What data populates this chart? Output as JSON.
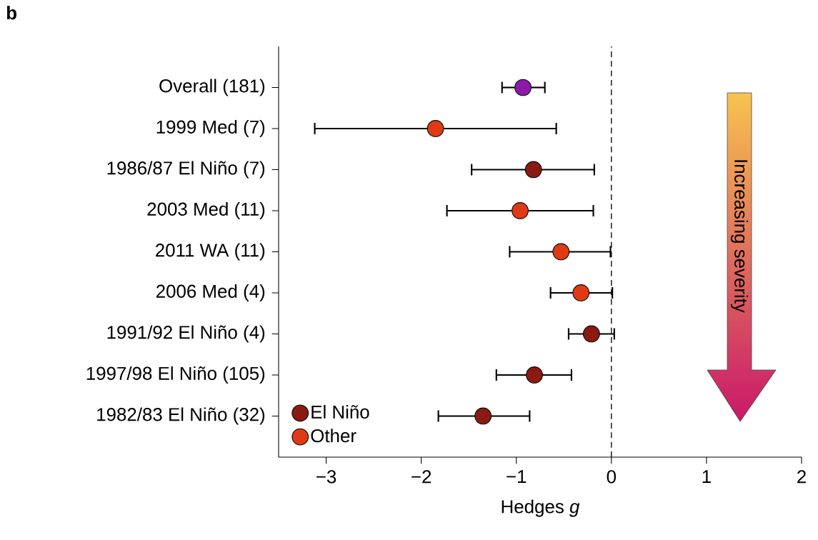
{
  "chart_data": {
    "type": "scatter",
    "categories": [
      "Overall (181)",
      "1999 Med (7)",
      "1986/87 El Niño (7)",
      "2003 Med (11)",
      "2011 WA (11)",
      "2006 Med (4)",
      "1991/92 El Niño (4)",
      "1997/98 El Niño (105)",
      "1982/83 El Niño (32)"
    ],
    "series": [
      {
        "color": "#8c1aa8",
        "values": [
          -0.93,
          null,
          null,
          null,
          null,
          null,
          null,
          null,
          null
        ],
        "errors": [
          [
            -1.15,
            -0.7
          ],
          null,
          null,
          null,
          null,
          null,
          null,
          null,
          null
        ]
      },
      {
        "name": "El Niño",
        "color": "#8b1a10",
        "values": [
          null,
          null,
          -0.82,
          null,
          null,
          null,
          -0.21,
          -0.81,
          -1.35
        ],
        "errors": [
          null,
          null,
          [
            -1.47,
            -0.18
          ],
          null,
          null,
          null,
          [
            -0.45,
            0.03
          ],
          [
            -1.21,
            -0.42
          ],
          [
            -1.82,
            -0.86
          ]
        ]
      },
      {
        "name": "Other",
        "color": "#e03a14",
        "values": [
          null,
          -1.85,
          null,
          -0.96,
          -0.53,
          -0.32,
          null,
          null,
          null
        ],
        "errors": [
          null,
          [
            -3.12,
            -0.58
          ],
          null,
          [
            -1.73,
            -0.19
          ],
          [
            -1.07,
            -0.01
          ],
          [
            -0.64,
            0.01
          ],
          null,
          null,
          null
        ]
      }
    ],
    "orientation": "horizontal",
    "xlabel": "Hedges *g*",
    "xlim": [
      -3.5,
      2
    ],
    "xticks": [
      {
        "value": -3,
        "label": "−3"
      },
      {
        "value": -2,
        "label": "−2"
      },
      {
        "value": -1,
        "label": "−1"
      },
      0,
      1,
      2
    ],
    "ref_lines": [
      {
        "axis": "x",
        "value": 0,
        "line_style": "dashed"
      }
    ],
    "marker": "circle",
    "legend": "bottom left",
    "annotations": [
      "b",
      "Increasing severity"
    ]
  }
}
